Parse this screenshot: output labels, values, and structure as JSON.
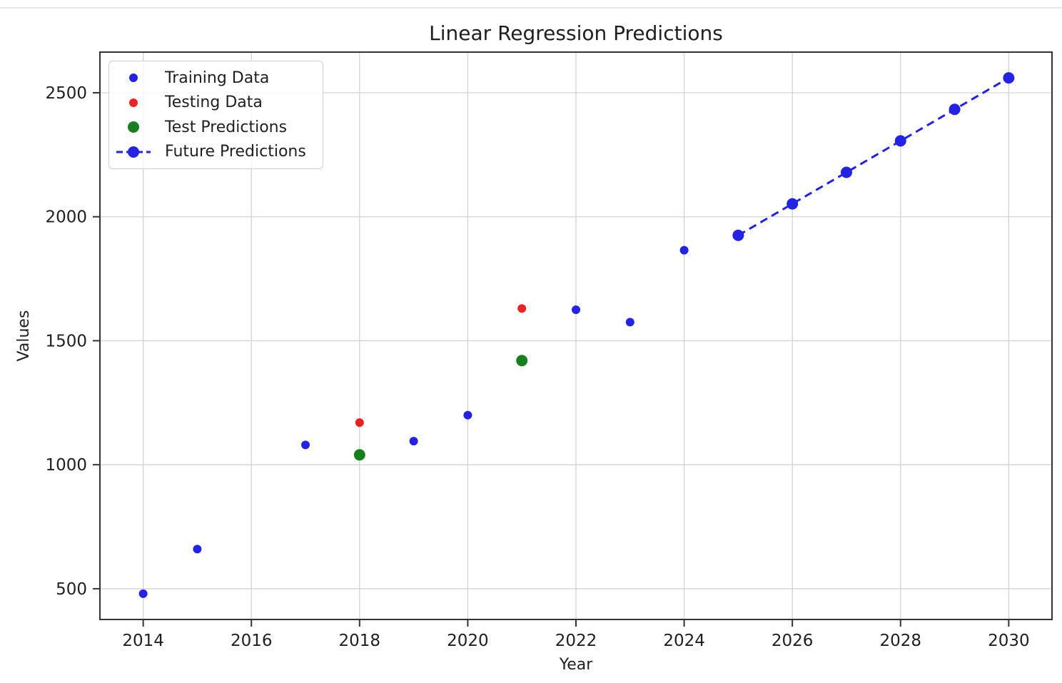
{
  "figure": {
    "background": "#ffffff",
    "top_divider_color": "#e8e8e8"
  },
  "chart_data": {
    "type": "scatter",
    "title": "Linear Regression Predictions",
    "xlabel": "Year",
    "ylabel": "Values",
    "xlim": [
      2013.2,
      2030.8
    ],
    "ylim": [
      376,
      2664
    ],
    "x_ticks": [
      2014,
      2016,
      2018,
      2020,
      2022,
      2024,
      2026,
      2028,
      2030
    ],
    "y_ticks": [
      500,
      1000,
      1500,
      2000,
      2500
    ],
    "grid": true,
    "grid_color": "#d2d2d2",
    "spine_color": "#333333",
    "text_color": "#1f1f1f",
    "legend_position": "upper-left",
    "series": [
      {
        "name": "Training Data",
        "kind": "scatter",
        "color": "#2323e6",
        "marker_radius": 6,
        "points": [
          [
            2014,
            480
          ],
          [
            2015,
            660
          ],
          [
            2017,
            1080
          ],
          [
            2019,
            1095
          ],
          [
            2020,
            1200
          ],
          [
            2022,
            1625
          ],
          [
            2023,
            1575
          ],
          [
            2024,
            1865
          ]
        ]
      },
      {
        "name": "Testing Data",
        "kind": "scatter",
        "color": "#ee2222",
        "marker_radius": 6,
        "points": [
          [
            2018,
            1170
          ],
          [
            2021,
            1630
          ]
        ]
      },
      {
        "name": "Test Predictions",
        "kind": "scatter",
        "color": "#17801d",
        "marker_radius": 8,
        "points": [
          [
            2018,
            1040
          ],
          [
            2021,
            1420
          ]
        ]
      },
      {
        "name": "Future Predictions",
        "kind": "line-scatter",
        "line_style": "dashed",
        "color": "#2323e6",
        "marker_radius": 8,
        "points": [
          [
            2025,
            1925
          ],
          [
            2026,
            2052
          ],
          [
            2027,
            2179
          ],
          [
            2028,
            2306
          ],
          [
            2029,
            2433
          ],
          [
            2030,
            2560
          ]
        ]
      }
    ]
  }
}
